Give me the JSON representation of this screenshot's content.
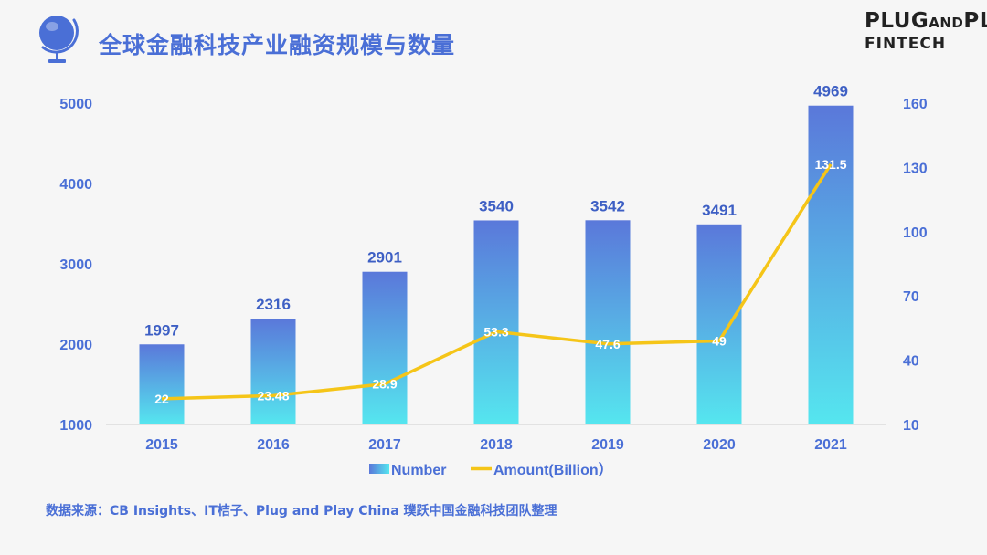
{
  "header": {
    "title": "全球金融科技产业融资规模与数量"
  },
  "brand": {
    "line1_a": "PLUG",
    "line1_b": "AND",
    "line1_c": "PLAY",
    "line2": "FINTECH"
  },
  "source": "数据来源：CB Insights、IT桔子、Plug and Play China 璞跃中国金融科技团队整理",
  "icons": {
    "logo": "globe-icon"
  },
  "colors": {
    "bar_top": "#5a78da",
    "bar_bottom": "#55e6ef",
    "line": "#f5c518",
    "accent_text": "#4a6fd6"
  },
  "chart_data": {
    "type": "bar",
    "categories": [
      "2015",
      "2016",
      "2017",
      "2018",
      "2019",
      "2020",
      "2021"
    ],
    "series": [
      {
        "name": "Number",
        "type": "bar",
        "axis": "left",
        "values": [
          1997,
          2316,
          2901,
          3540,
          3542,
          3491,
          4969
        ]
      },
      {
        "name": "Amount(Billion）",
        "type": "line",
        "axis": "right",
        "values": [
          22,
          23.48,
          28.9,
          53.3,
          47.6,
          49,
          131.5
        ]
      }
    ],
    "left_axis": {
      "min": 1000,
      "max": 5000,
      "ticks": [
        1000,
        2000,
        3000,
        4000,
        5000
      ]
    },
    "right_axis": {
      "min": 10,
      "max": 160,
      "ticks": [
        10,
        40,
        70,
        100,
        130,
        160
      ]
    },
    "grid": false,
    "legend": "bottom"
  }
}
